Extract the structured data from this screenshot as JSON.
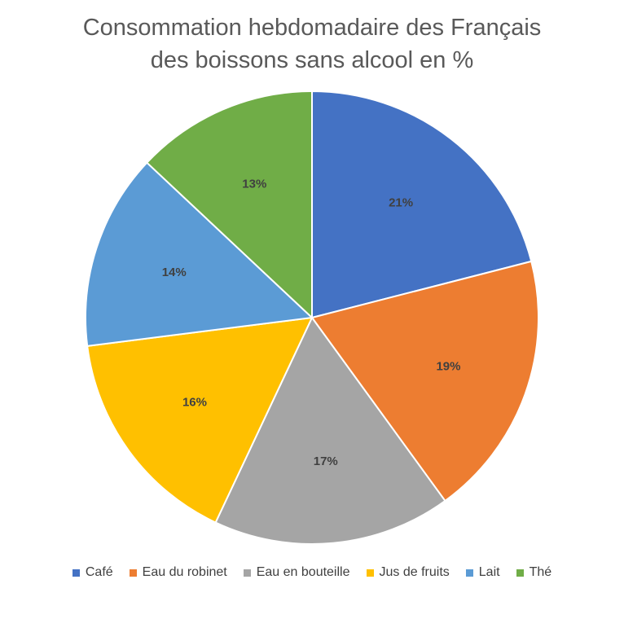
{
  "chart_data": {
    "type": "pie",
    "title_lines": [
      "Consommation hebdomadaire des Français",
      "des boissons sans alcool en %"
    ],
    "categories": [
      "Café",
      "Eau du robinet",
      "Eau en bouteille",
      "Jus de fruits",
      "Lait",
      "Thé"
    ],
    "values": [
      21,
      19,
      17,
      16,
      14,
      13
    ],
    "data_labels": [
      "21%",
      "19%",
      "17%",
      "16%",
      "14%",
      "13%"
    ],
    "colors": [
      "#4472C4",
      "#ED7D31",
      "#A5A5A5",
      "#FFC000",
      "#5B9BD5",
      "#70AD47"
    ],
    "start_angle": "12 o'clock",
    "direction": "clockwise",
    "legend_position": "bottom"
  }
}
